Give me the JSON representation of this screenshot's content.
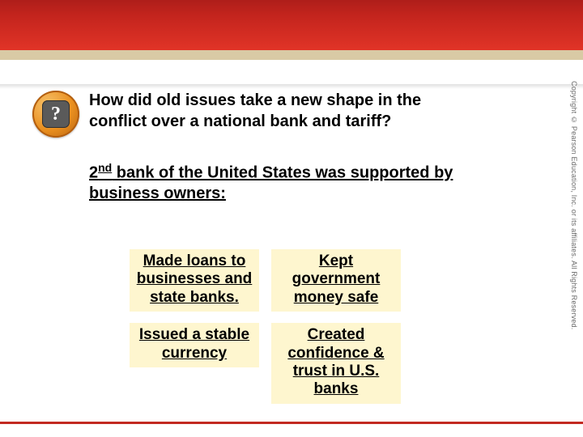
{
  "colors": {
    "header_gradient_top": "#ae1e1a",
    "header_gradient_mid": "#c3241d",
    "header_gradient_bottom": "#e13427",
    "tan_strip": "#d9caa5",
    "bottom_rule": "#c22a21",
    "box_bg": "#fef6cf",
    "badge_outer": "#e98f1f",
    "badge_inner": "#5a5a5a",
    "text": "#000000",
    "copyright_text": "#6a6a6a"
  },
  "typography": {
    "body_font": "Verdana, Arial, sans-serif",
    "question_fontsize_pt": 15,
    "box_fontsize_pt": 14
  },
  "badge": {
    "glyph": "?",
    "label": "Essential Question"
  },
  "question": "How did old issues take a new shape in the conflict over a national bank and tariff?",
  "subhead_prefix": "2",
  "subhead_ordinal": "nd",
  "subhead_rest": " bank of the United States was supported by business owners:",
  "boxes": {
    "left": [
      "Made loans to businesses and state banks.",
      "Issued a stable currency"
    ],
    "right": [
      "Kept government money safe",
      "Created confidence & trust in U.S. banks"
    ]
  },
  "copyright": "Copyright © Pearson Education, Inc. or its affiliates. All Rights Reserved."
}
